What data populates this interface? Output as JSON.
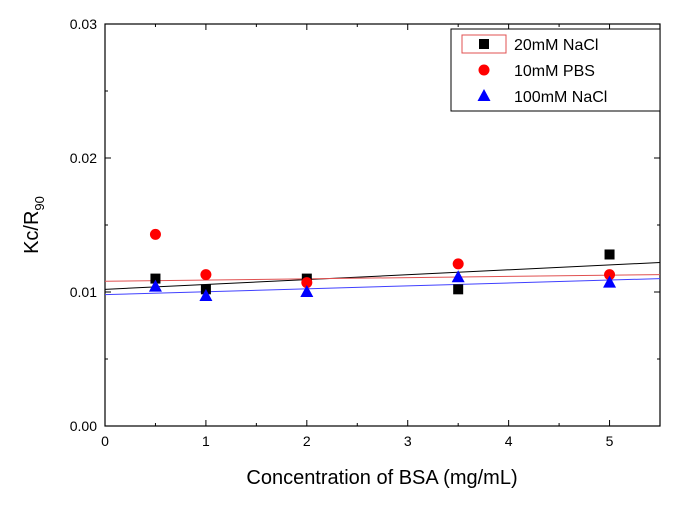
{
  "chart_data": {
    "type": "scatter",
    "xlabel": "Concentration of BSA (mg/mL)",
    "ylabel": "Kc/R",
    "ylabel_subscript": "90",
    "xlim": [
      0,
      5.5
    ],
    "ylim": [
      0,
      0.03
    ],
    "xticks": [
      "0",
      "1",
      "2",
      "3",
      "4",
      "5"
    ],
    "yticks": [
      "0.00",
      "0.01",
      "0.02",
      "0.03"
    ],
    "grid": false,
    "legend_position": "top-right",
    "series": [
      {
        "name": "20mM NaCl",
        "marker": "square",
        "color": "#000000",
        "line_color": "#000000",
        "x": [
          0.5,
          1,
          2,
          3.5,
          5
        ],
        "y": [
          0.011,
          0.0102,
          0.011,
          0.0102,
          0.0128
        ],
        "fit": [
          [
            0,
            0.0102
          ],
          [
            5.5,
            0.0122
          ]
        ]
      },
      {
        "name": "10mM PBS",
        "marker": "circle",
        "color": "#ff0000",
        "line_color": "#e05050",
        "x": [
          0.5,
          1,
          2,
          3.5,
          5
        ],
        "y": [
          0.0143,
          0.0113,
          0.0107,
          0.0121,
          0.0113
        ],
        "fit": [
          [
            0,
            0.0108
          ],
          [
            5.5,
            0.0113
          ]
        ]
      },
      {
        "name": "100mM NaCl",
        "marker": "triangle",
        "color": "#0000ff",
        "line_color": "#4040ff",
        "x": [
          0.5,
          1,
          2,
          3.5,
          5
        ],
        "y": [
          0.0104,
          0.0097,
          0.01,
          0.0111,
          0.0107
        ],
        "fit": [
          [
            0,
            0.0098
          ],
          [
            5.5,
            0.011
          ]
        ]
      }
    ]
  }
}
